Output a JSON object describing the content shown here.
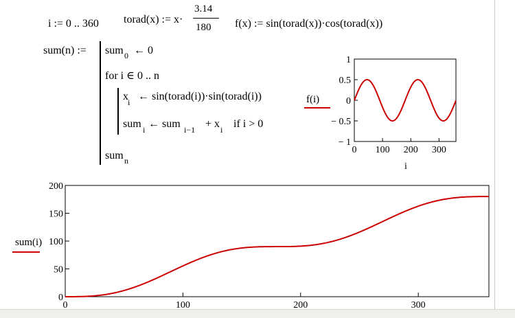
{
  "definitions": {
    "range_lhs": "i := 0 .. 360",
    "torad_lhs": "torad(x) := x·",
    "torad_num": "3.14",
    "torad_den": "180",
    "f_def": "f(x) := sin(torad(x))·cos(torad(x))"
  },
  "program": {
    "sum_def": "sum(n) :=",
    "line1_main": "sum",
    "line1_sub": "0",
    "line1_rest": "← 0",
    "line2": "for  i ∈ 0 .. n",
    "line3_x": "x",
    "line3_sub": "i",
    "line3_rest": "← sin(torad(i))·sin(torad(i))",
    "line4_sum": "sum",
    "line4_sub_i": "i",
    "line4_mid": "← sum",
    "line4_sub_im1": "i−1",
    "line4_plus": "+ x",
    "line4_sub_i2": "i",
    "line4_if": "if  i > 0",
    "line5_main": "sum",
    "line5_sub": "n"
  },
  "chart_data": [
    {
      "type": "line",
      "series": [
        {
          "name": "f(i)",
          "function": "sin(x·3.14/180)·cos(x·3.14/180)",
          "x_range": [
            0,
            360
          ],
          "color": "#cc0000"
        }
      ],
      "xlabel": "i",
      "ylabel": "f(i)",
      "xlim": [
        0,
        360
      ],
      "ylim": [
        -1,
        1
      ],
      "xticks": [
        "0",
        "100",
        "200",
        "300"
      ],
      "yticks": [
        "1",
        "0.5",
        "0",
        "− 0.5",
        "− 1"
      ],
      "grid": false
    },
    {
      "type": "line",
      "series": [
        {
          "name": "sum(i)",
          "function": "cumulative sum of sin²(x·3.14/180)",
          "x_range": [
            0,
            360
          ],
          "color": "#cc0000"
        }
      ],
      "xlabel": "",
      "ylabel": "sum(i)",
      "xlim": [
        0,
        360
      ],
      "ylim": [
        0,
        200
      ],
      "xticks": [
        "0",
        "100",
        "200",
        "300"
      ],
      "yticks": [
        "200",
        "150",
        "100",
        "50",
        "0"
      ],
      "grid": false
    }
  ]
}
